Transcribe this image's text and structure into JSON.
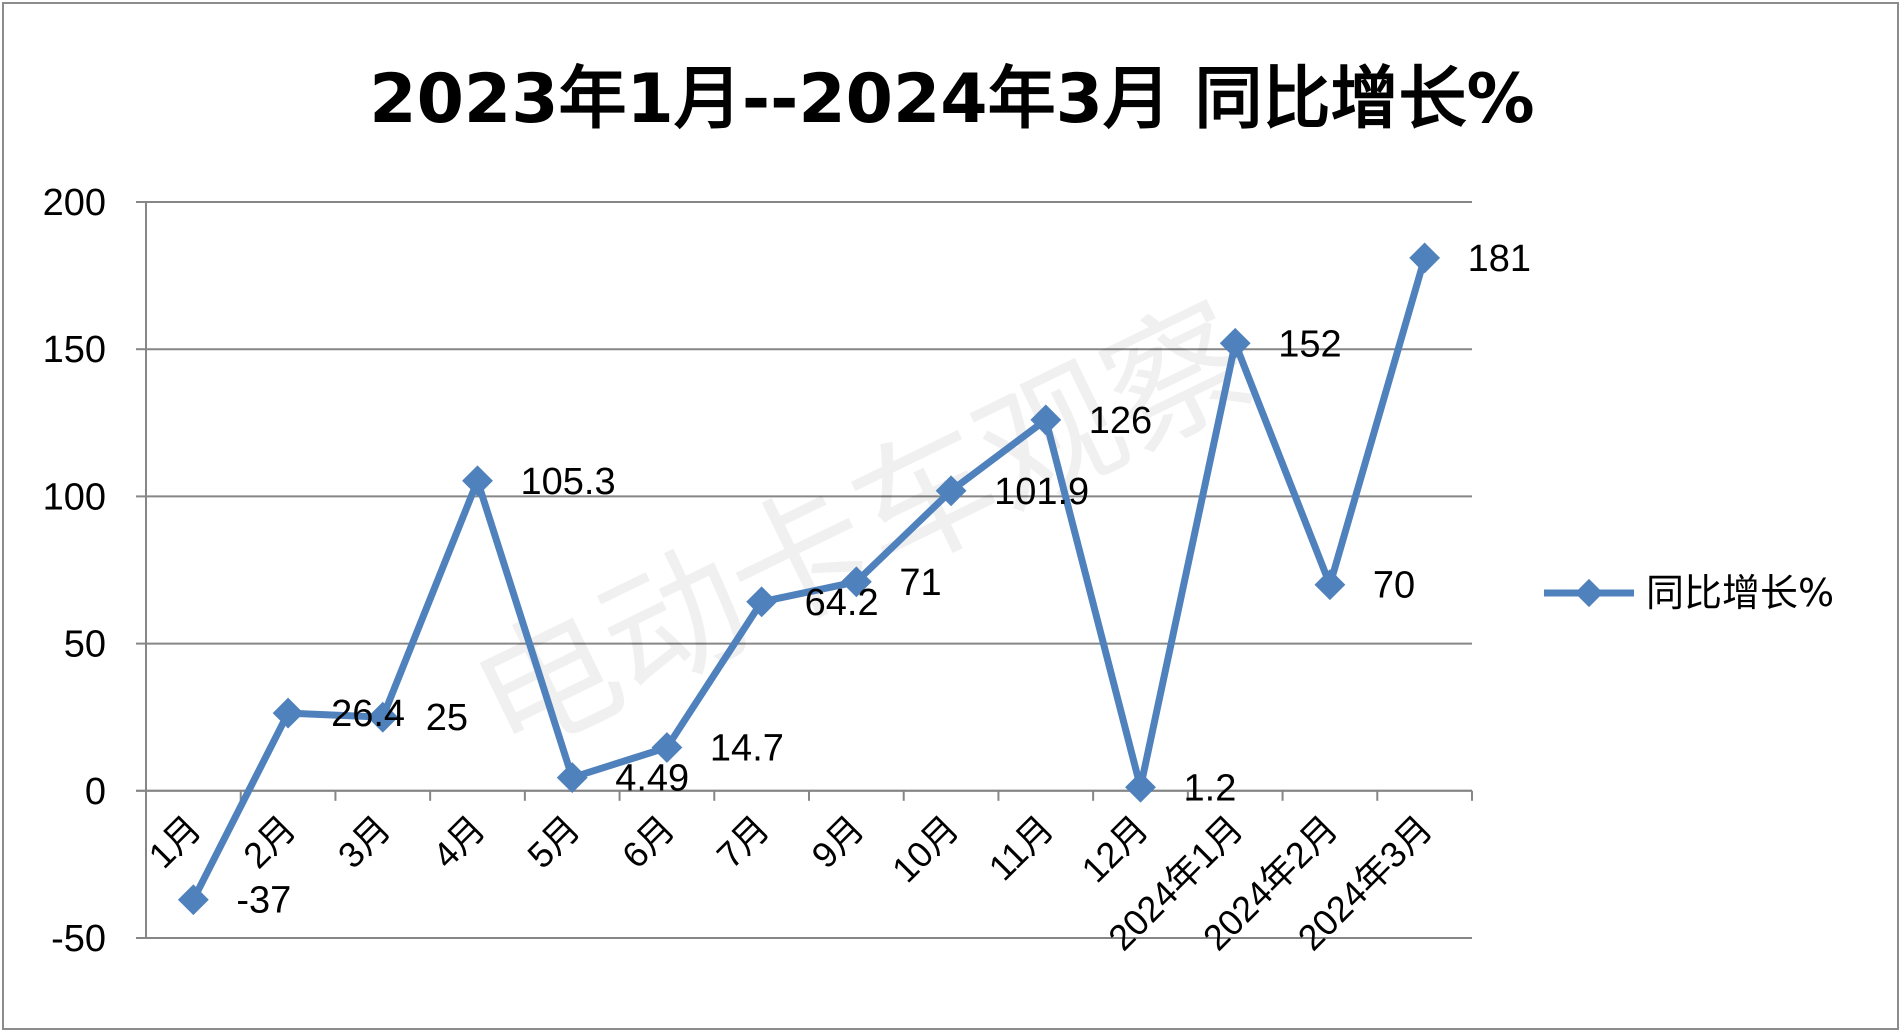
{
  "chart_data": {
    "type": "line",
    "title": "2023年1月--2024年3月 同比增长%",
    "xlabel": "",
    "ylabel": "",
    "ylim": [
      -50,
      200
    ],
    "yticks": [
      -50,
      0,
      50,
      100,
      150,
      200
    ],
    "grid": true,
    "legend_position": "right",
    "categories": [
      "1月",
      "2月",
      "3月",
      "4月",
      "5月",
      "6月",
      "7月",
      "9月",
      "10月",
      "11月",
      "12月",
      "2024年1月",
      "2024年2月",
      "2024年3月"
    ],
    "series": [
      {
        "name": "同比增长%",
        "color": "#4f81bd",
        "marker": "diamond",
        "values": [
          -37,
          26.4,
          25,
          105.3,
          4.49,
          14.7,
          64.2,
          71,
          101.9,
          126,
          1.2,
          152,
          70,
          181
        ],
        "labels": [
          "-37",
          "26.4",
          "25",
          "105.3",
          "4.49",
          "14.7",
          "64.2",
          "71",
          "101.9",
          "126",
          "1.2",
          "152",
          "70",
          "181"
        ]
      }
    ],
    "watermark": "电动卡车观察"
  }
}
